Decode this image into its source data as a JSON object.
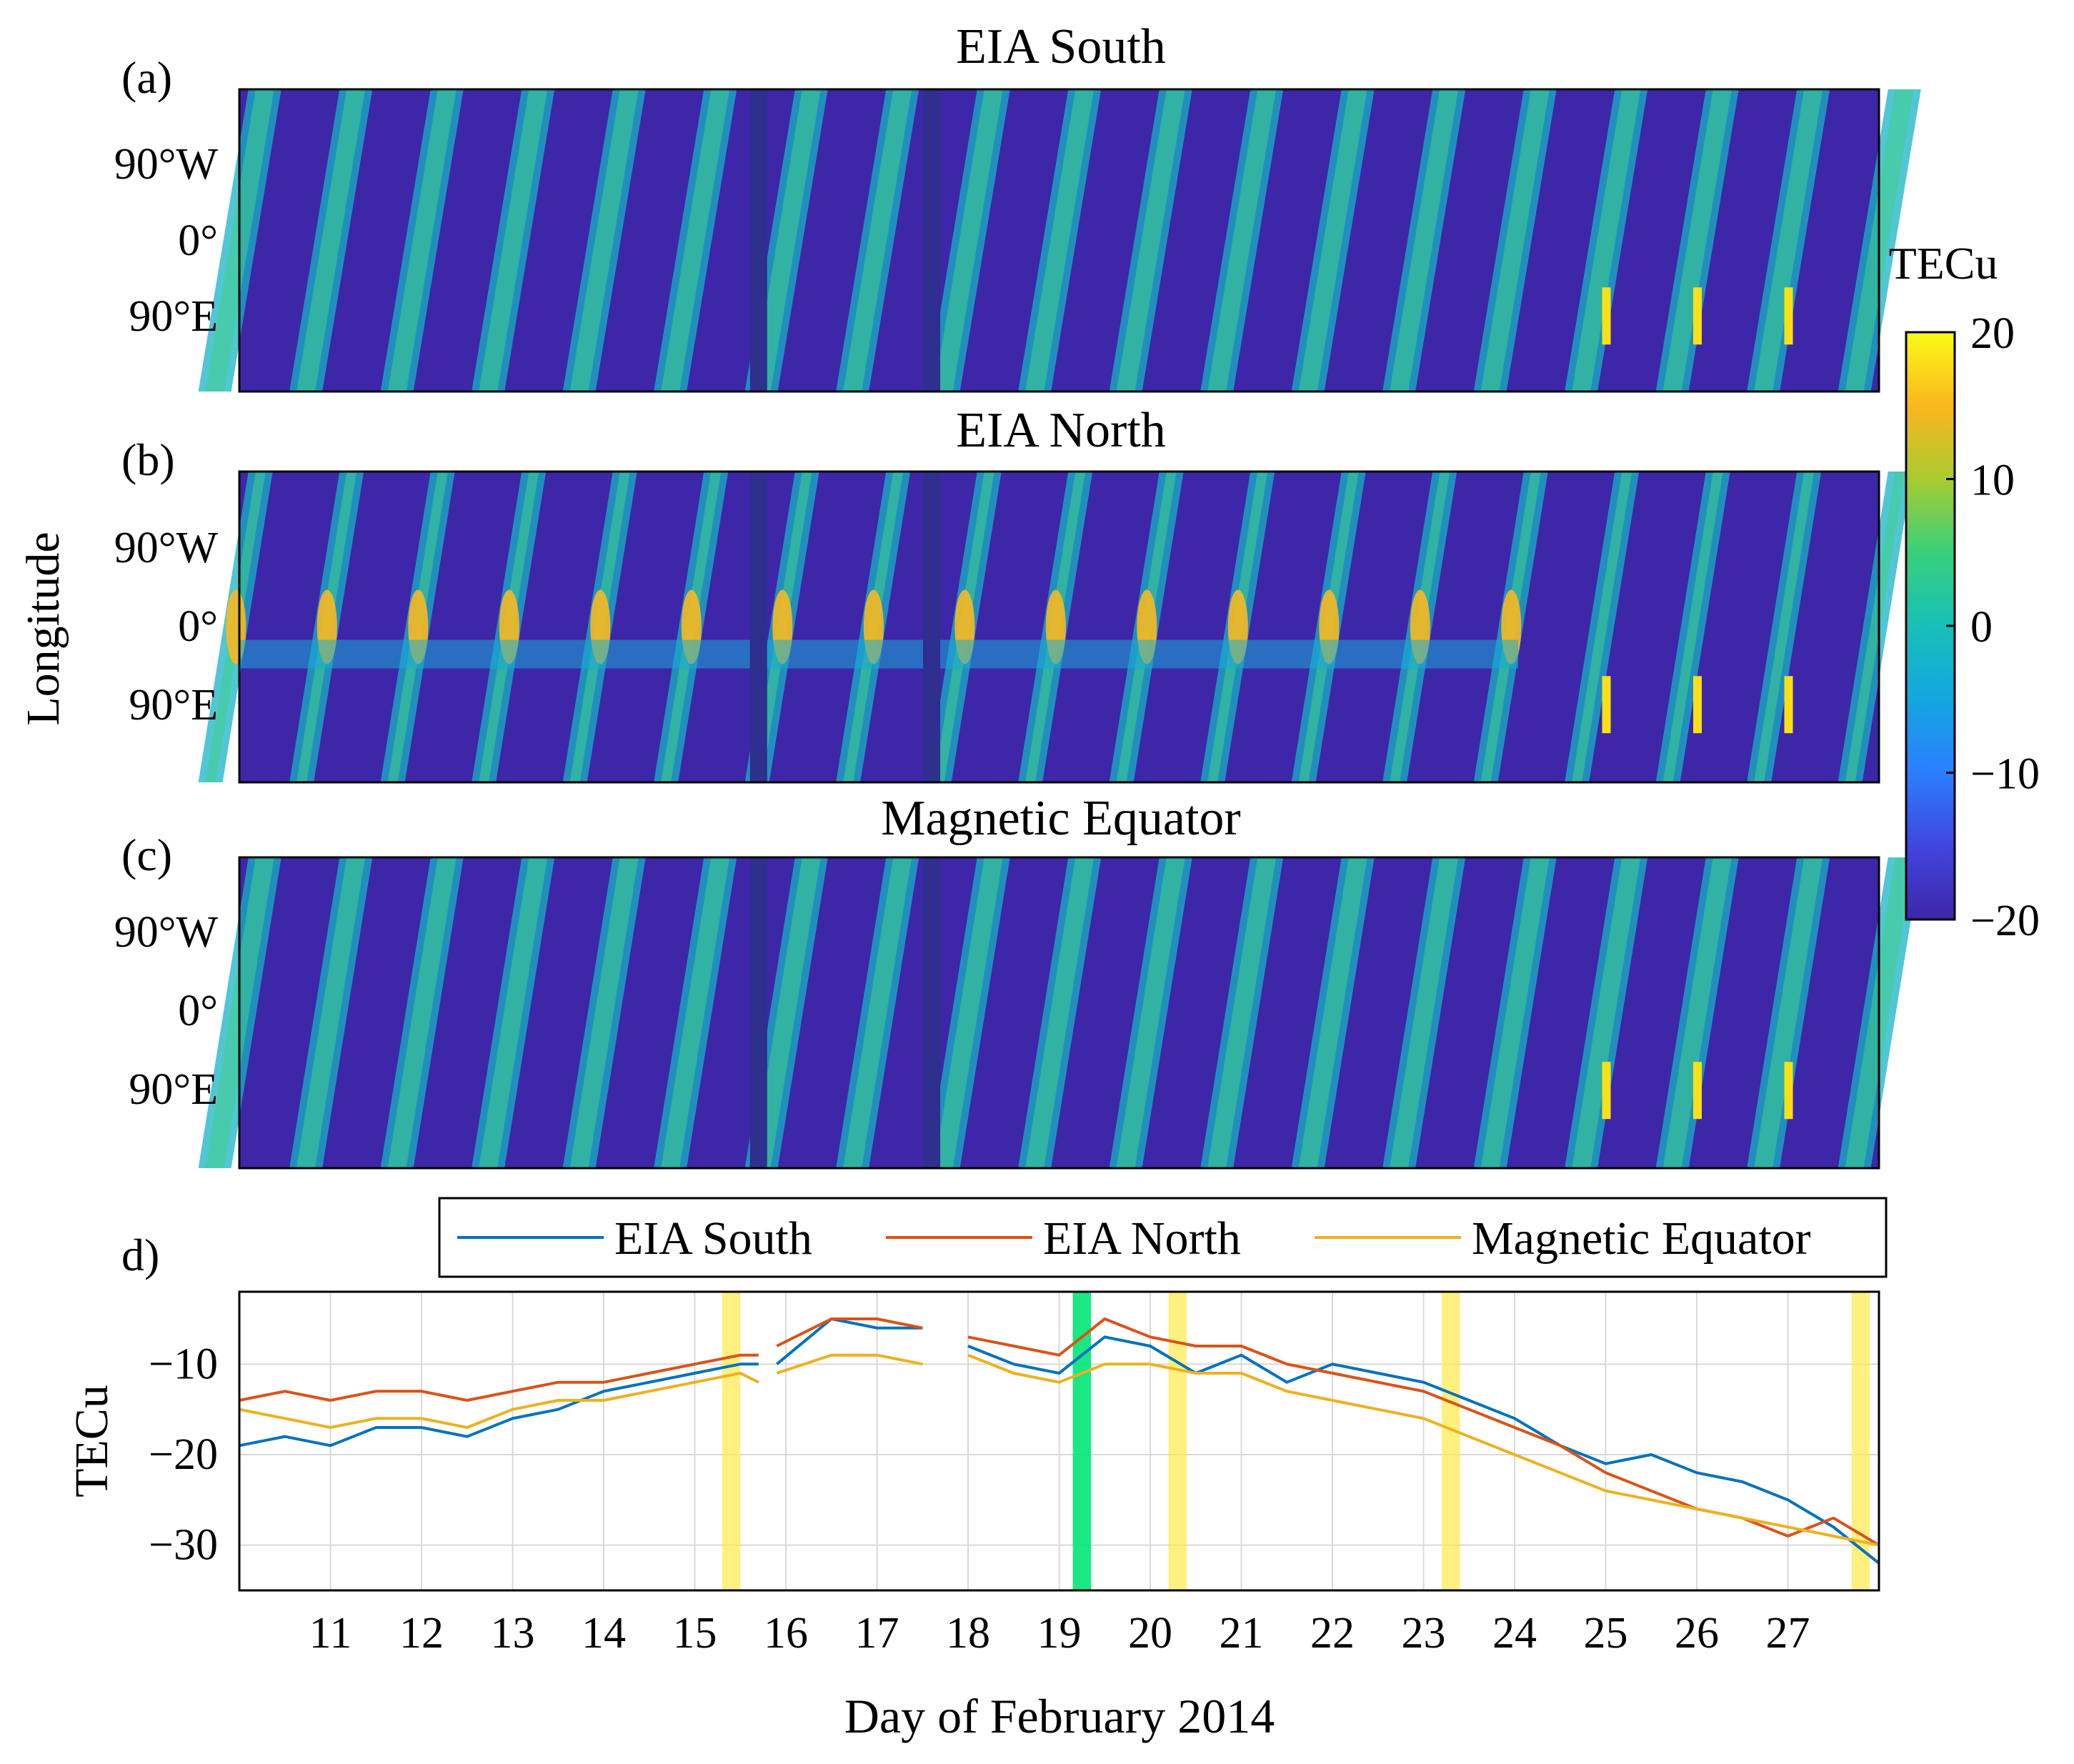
{
  "figure": {
    "shared_ylabel": "Longitude",
    "colorbar_label": "TECu"
  },
  "colorbar": {
    "label": "TECu",
    "ticks": [
      {
        "value": 20,
        "label": "20"
      },
      {
        "value": 10,
        "label": "10"
      },
      {
        "value": 0,
        "label": "0"
      },
      {
        "value": -10,
        "label": "−10"
      },
      {
        "value": -20,
        "label": "−20"
      }
    ],
    "stops": [
      "#3e26a8",
      "#4145e0",
      "#2b7fff",
      "#13a6e0",
      "#17c0b8",
      "#38d07b",
      "#a8cc2f",
      "#fbb61e",
      "#f9fb15"
    ]
  },
  "panels": [
    {
      "letter": "(a)",
      "title": "EIA South"
    },
    {
      "letter": "(b)",
      "title": "EIA North"
    },
    {
      "letter": "(c)",
      "title": "Magnetic Equator"
    }
  ],
  "longitude_ticks": [
    "90°W",
    "0°",
    "90°E"
  ],
  "colors": {
    "eia_south": "#0072BD",
    "eia_north": "#D95319",
    "magnetic_equator": "#EDB120",
    "highlight_yellow": "#FFE94A",
    "highlight_green": "#00E676",
    "background": "#3e26a8"
  },
  "chart_data": [
    {
      "type": "heatmap",
      "panel": "(a)",
      "title": "EIA South",
      "xlabel": "",
      "ylabel": "Longitude",
      "xlim": [
        10,
        28
      ],
      "ylim": [
        -180,
        180
      ],
      "yticks": [
        -90,
        0,
        90
      ],
      "ytick_labels": [
        "90°W",
        "0°",
        "90°E"
      ],
      "clim": [
        -20,
        20
      ],
      "data_gaps_day": [
        15.7,
        17.6
      ],
      "spikes": [
        {
          "day": 25.0,
          "lon": 90
        },
        {
          "day": 26.0,
          "lon": 90
        },
        {
          "day": 27.0,
          "lon": 90
        }
      ]
    },
    {
      "type": "heatmap",
      "panel": "(b)",
      "title": "EIA North",
      "xlabel": "",
      "ylabel": "Longitude",
      "xlim": [
        10,
        28
      ],
      "ylim": [
        -180,
        180
      ],
      "yticks": [
        -90,
        0,
        90
      ],
      "ytick_labels": [
        "90°W",
        "0°",
        "90°E"
      ],
      "clim": [
        -20,
        20
      ],
      "data_gaps_day": [
        15.7,
        17.6
      ],
      "spikes": [
        {
          "day": 25.0,
          "lon": 90
        },
        {
          "day": 26.0,
          "lon": 90
        },
        {
          "day": 27.0,
          "lon": 90
        }
      ]
    },
    {
      "type": "heatmap",
      "panel": "(c)",
      "title": "Magnetic Equator",
      "xlabel": "",
      "ylabel": "Longitude",
      "xlim": [
        10,
        28
      ],
      "ylim": [
        -180,
        180
      ],
      "yticks": [
        -90,
        0,
        90
      ],
      "ytick_labels": [
        "90°W",
        "0°",
        "90°E"
      ],
      "clim": [
        -20,
        20
      ],
      "data_gaps_day": [
        15.7,
        17.6
      ],
      "spikes": [
        {
          "day": 25.0,
          "lon": 90
        },
        {
          "day": 26.0,
          "lon": 90
        },
        {
          "day": 27.0,
          "lon": 90
        }
      ]
    },
    {
      "type": "line",
      "panel": "d)",
      "title": "",
      "xlabel": "Day of February 2014",
      "ylabel": "TECu",
      "xlim": [
        10,
        28
      ],
      "ylim": [
        -35,
        -2
      ],
      "xticks": [
        11,
        12,
        13,
        14,
        15,
        16,
        17,
        18,
        19,
        20,
        21,
        22,
        23,
        24,
        25,
        26,
        27
      ],
      "yticks": [
        -30,
        -20,
        -10
      ],
      "ytick_labels": [
        "−30",
        "−20",
        "−10"
      ],
      "grid": true,
      "legend": "top",
      "highlights": [
        {
          "start": 15.3,
          "end": 15.5,
          "color": "yellow"
        },
        {
          "start": 19.15,
          "end": 19.35,
          "color": "green"
        },
        {
          "start": 20.2,
          "end": 20.4,
          "color": "yellow"
        },
        {
          "start": 23.2,
          "end": 23.4,
          "color": "yellow"
        },
        {
          "start": 27.7,
          "end": 27.9,
          "color": "yellow"
        }
      ],
      "series": [
        {
          "name": "EIA South",
          "x": [
            10,
            10.5,
            11,
            11.5,
            12,
            12.5,
            13,
            13.5,
            14,
            14.5,
            15,
            15.5,
            15.7,
            null,
            15.9,
            16.5,
            17,
            17.5,
            null,
            18,
            18.5,
            19,
            19.5,
            20,
            20.5,
            21,
            21.5,
            22,
            22.5,
            23,
            23.5,
            24,
            24.5,
            25,
            25.5,
            26,
            26.5,
            27,
            27.5,
            28
          ],
          "values": [
            -19,
            -18,
            -19,
            -17,
            -17,
            -18,
            -16,
            -15,
            -13,
            -12,
            -11,
            -10,
            -10,
            null,
            -10,
            -5,
            -6,
            -6,
            null,
            -8,
            -10,
            -11,
            -7,
            -8,
            -11,
            -9,
            -12,
            -10,
            -11,
            -12,
            -14,
            -16,
            -19,
            -21,
            -20,
            -22,
            -23,
            -25,
            -28,
            -32
          ]
        },
        {
          "name": "EIA North",
          "x": [
            10,
            10.5,
            11,
            11.5,
            12,
            12.5,
            13,
            13.5,
            14,
            14.5,
            15,
            15.5,
            15.7,
            null,
            15.9,
            16.5,
            17,
            17.5,
            null,
            18,
            18.5,
            19,
            19.5,
            20,
            20.5,
            21,
            21.5,
            22,
            22.5,
            23,
            23.5,
            24,
            24.5,
            25,
            25.5,
            26,
            26.5,
            27,
            27.5,
            28
          ],
          "values": [
            -14,
            -13,
            -14,
            -13,
            -13,
            -14,
            -13,
            -12,
            -12,
            -11,
            -10,
            -9,
            -9,
            null,
            -8,
            -5,
            -5,
            -6,
            null,
            -7,
            -8,
            -9,
            -5,
            -7,
            -8,
            -8,
            -10,
            -11,
            -12,
            -13,
            -15,
            -17,
            -19,
            -22,
            -24,
            -26,
            -27,
            -29,
            -27,
            -30
          ]
        },
        {
          "name": "Magnetic Equator",
          "x": [
            10,
            10.5,
            11,
            11.5,
            12,
            12.5,
            13,
            13.5,
            14,
            14.5,
            15,
            15.5,
            15.7,
            null,
            15.9,
            16.5,
            17,
            17.5,
            null,
            18,
            18.5,
            19,
            19.5,
            20,
            20.5,
            21,
            21.5,
            22,
            22.5,
            23,
            23.5,
            24,
            24.5,
            25,
            25.5,
            26,
            26.5,
            27,
            27.5,
            28
          ],
          "values": [
            -15,
            -16,
            -17,
            -16,
            -16,
            -17,
            -15,
            -14,
            -14,
            -13,
            -12,
            -11,
            -12,
            null,
            -11,
            -9,
            -9,
            -10,
            null,
            -9,
            -11,
            -12,
            -10,
            -10,
            -11,
            -11,
            -13,
            -14,
            -15,
            -16,
            -18,
            -20,
            -22,
            -24,
            -25,
            -26,
            -27,
            -28,
            -29,
            -30
          ]
        }
      ]
    }
  ]
}
